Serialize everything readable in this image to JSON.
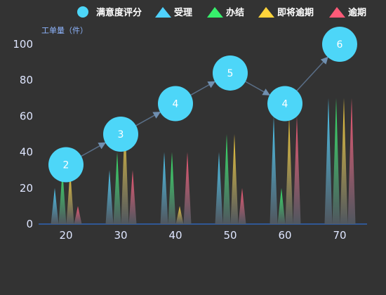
{
  "chart_data": {
    "type": "bar",
    "ylabel": "工单量（件）",
    "ylim": [
      0,
      100
    ],
    "yticks": [
      0,
      20,
      40,
      60,
      80,
      100
    ],
    "categories": [
      "20",
      "30",
      "40",
      "50",
      "60",
      "70"
    ],
    "legend_position": "top-right",
    "series": [
      {
        "name": "受理",
        "color": "#4fd2ff",
        "values": [
          20,
          30,
          40,
          40,
          60,
          70
        ]
      },
      {
        "name": "办结",
        "color": "#37f06c",
        "values": [
          30,
          40,
          40,
          50,
          20,
          70
        ]
      },
      {
        "name": "即将逾期",
        "color": "#ffd43b",
        "values": [
          30,
          60,
          10,
          50,
          60,
          70
        ]
      },
      {
        "name": "逾期",
        "color": "#ff5a78",
        "values": [
          10,
          30,
          40,
          20,
          60,
          70
        ]
      }
    ],
    "satisfaction": {
      "name": "满意度评分",
      "color": "#4dd6f8",
      "values": [
        2,
        3,
        4,
        5,
        4,
        6
      ],
      "positions": [
        33,
        50,
        67,
        84,
        67,
        100
      ]
    }
  }
}
